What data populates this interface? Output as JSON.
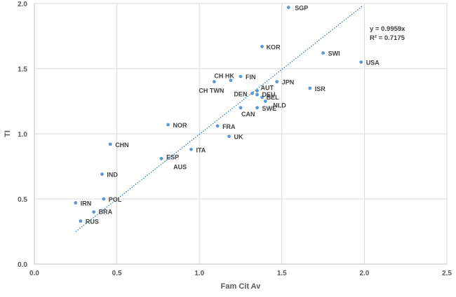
{
  "chart_data": {
    "type": "scatter",
    "title": "",
    "xlabel": "Fam Cit Av",
    "ylabel": "TI",
    "xlim": [
      0,
      2.5
    ],
    "ylim": [
      0,
      2.0
    ],
    "xticks": [
      "0.0",
      "0.5",
      "1.0",
      "1.5",
      "2.0",
      "2.5"
    ],
    "yticks": [
      "0.0",
      "0.5",
      "1.0",
      "1.5",
      "2.0"
    ],
    "grid": true,
    "marker_color": "#5b9bd5",
    "trendline": {
      "type": "linear-through-origin",
      "slope": 0.9959,
      "x_range": [
        0.25,
        1.99
      ],
      "color": "#2e75b6",
      "equation": "y = 0.9959x",
      "r_squared": "R² = 0.7175"
    },
    "points": [
      {
        "label": "SGP",
        "x": 1.54,
        "y": 1.97
      },
      {
        "label": "KOR",
        "x": 1.38,
        "y": 1.67
      },
      {
        "label": "SWI",
        "x": 1.75,
        "y": 1.62
      },
      {
        "label": "USA",
        "x": 1.98,
        "y": 1.55
      },
      {
        "label": "CH HK",
        "x": 1.19,
        "y": 1.41
      },
      {
        "label": "FIN",
        "x": 1.25,
        "y": 1.44
      },
      {
        "label": "CH TWN",
        "x": 1.09,
        "y": 1.4
      },
      {
        "label": "JPN",
        "x": 1.47,
        "y": 1.4
      },
      {
        "label": "ISR",
        "x": 1.67,
        "y": 1.35
      },
      {
        "label": "AUT",
        "x": 1.35,
        "y": 1.33
      },
      {
        "label": "DEN",
        "x": 1.32,
        "y": 1.31
      },
      {
        "label": "DEU",
        "x": 1.35,
        "y": 1.3
      },
      {
        "label": "BEL",
        "x": 1.38,
        "y": 1.28
      },
      {
        "label": "NLD",
        "x": 1.4,
        "y": 1.25
      },
      {
        "label": "CAN",
        "x": 1.25,
        "y": 1.2
      },
      {
        "label": "SWE",
        "x": 1.35,
        "y": 1.2
      },
      {
        "label": "NOR",
        "x": 0.81,
        "y": 1.07
      },
      {
        "label": "FRA",
        "x": 1.11,
        "y": 1.06
      },
      {
        "label": "UK",
        "x": 1.18,
        "y": 0.98
      },
      {
        "label": "CHN",
        "x": 0.46,
        "y": 0.92
      },
      {
        "label": "ITA",
        "x": 0.95,
        "y": 0.88
      },
      {
        "label": "ESP",
        "x": 0.77,
        "y": 0.81
      },
      {
        "label": "AUS",
        "x": 0.77,
        "y": 0.81
      },
      {
        "label": "IND",
        "x": 0.41,
        "y": 0.69
      },
      {
        "label": "POL",
        "x": 0.42,
        "y": 0.5
      },
      {
        "label": "IRN",
        "x": 0.25,
        "y": 0.47
      },
      {
        "label": "BRA",
        "x": 0.36,
        "y": 0.4
      },
      {
        "label": "RUS",
        "x": 0.28,
        "y": 0.33
      }
    ]
  }
}
